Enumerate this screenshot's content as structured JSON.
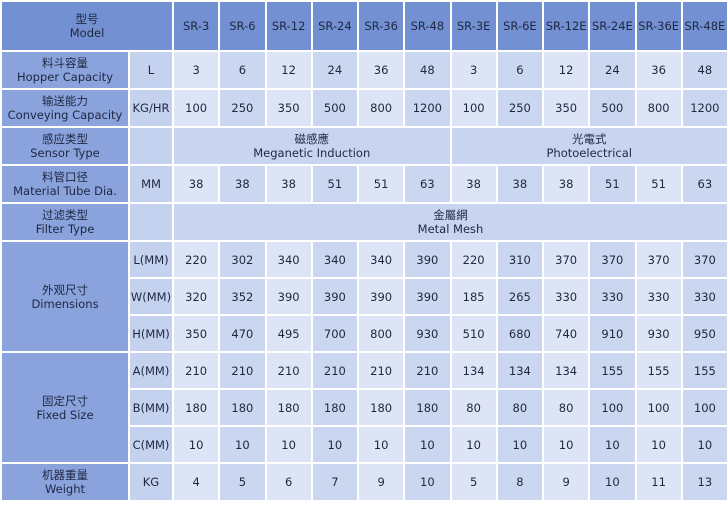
{
  "table": {
    "header": {
      "label": [
        "型号",
        "Model"
      ],
      "models": [
        "SR-3",
        "SR-6",
        "SR-12",
        "SR-24",
        "SR-36",
        "SR-48",
        "SR-3E",
        "SR-6E",
        "SR-12E",
        "SR-24E",
        "SR-36E",
        "SR-48E"
      ]
    },
    "rows": [
      {
        "label": [
          "料斗容量",
          "Hopper Capacity"
        ],
        "sub": [
          {
            "unit": "L",
            "values": [
              3,
              6,
              12,
              24,
              36,
              48,
              3,
              6,
              12,
              24,
              36,
              48
            ]
          }
        ]
      },
      {
        "label": [
          "输送能力",
          "Conveying Capacity"
        ],
        "sub": [
          {
            "unit": "KG/HR",
            "values": [
              100,
              250,
              350,
              500,
              800,
              1200,
              100,
              250,
              350,
              500,
              800,
              1200
            ]
          }
        ]
      },
      {
        "label": [
          "感应类型",
          "Sensor Type"
        ],
        "spans": [
          [
            "磁感應",
            "Meganetic Induction"
          ],
          [
            "光電式",
            "Photoelectrical"
          ]
        ]
      },
      {
        "label": [
          "料管口径",
          "Material Tube Dia."
        ],
        "sub": [
          {
            "unit": "MM",
            "values": [
              38,
              38,
              38,
              51,
              51,
              63,
              38,
              38,
              38,
              51,
              51,
              63
            ]
          }
        ]
      },
      {
        "label": [
          "过滤类型",
          "Filter Type"
        ],
        "spans": [
          [
            "金屬網",
            "Metal Mesh"
          ]
        ]
      },
      {
        "label": [
          "外观尺寸",
          "Dimensions"
        ],
        "sub": [
          {
            "unit": "L(MM)",
            "values": [
              220,
              302,
              340,
              340,
              340,
              390,
              220,
              310,
              370,
              370,
              370,
              370
            ]
          },
          {
            "unit": "W(MM)",
            "values": [
              320,
              352,
              390,
              390,
              390,
              390,
              185,
              265,
              330,
              330,
              330,
              330
            ]
          },
          {
            "unit": "H(MM)",
            "values": [
              350,
              470,
              495,
              700,
              800,
              930,
              510,
              680,
              740,
              910,
              930,
              950
            ]
          }
        ]
      },
      {
        "label": [
          "固定尺寸",
          "Fixed Size"
        ],
        "sub": [
          {
            "unit": "A(MM)",
            "values": [
              210,
              210,
              210,
              210,
              210,
              210,
              134,
              134,
              134,
              155,
              155,
              155
            ]
          },
          {
            "unit": "B(MM)",
            "values": [
              180,
              180,
              180,
              180,
              180,
              180,
              80,
              80,
              80,
              100,
              100,
              100
            ]
          },
          {
            "unit": "C(MM)",
            "values": [
              10,
              10,
              10,
              10,
              10,
              10,
              10,
              10,
              10,
              10,
              10,
              10
            ]
          }
        ]
      },
      {
        "label": [
          "机器重量",
          "Weight"
        ],
        "sub": [
          {
            "unit": "KG",
            "values": [
              4,
              5,
              6,
              7,
              9,
              10,
              5,
              8,
              9,
              10,
              11,
              13
            ]
          }
        ]
      }
    ]
  }
}
